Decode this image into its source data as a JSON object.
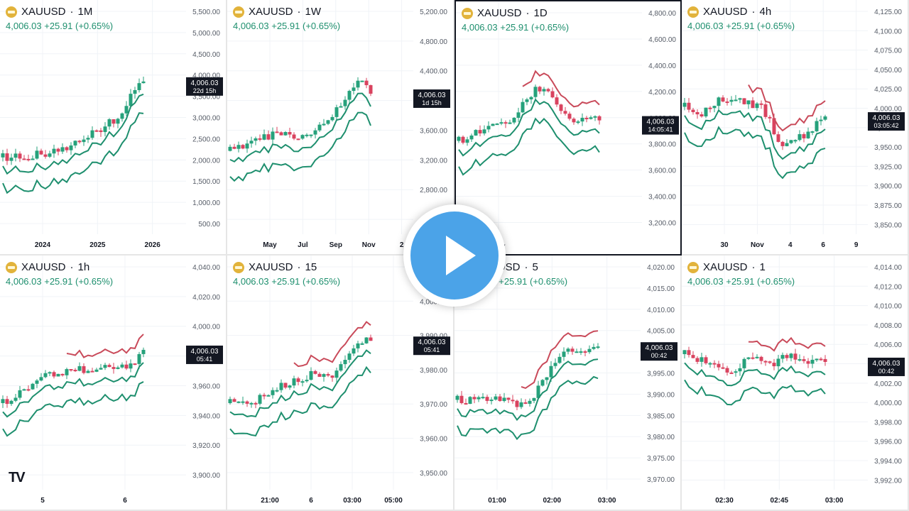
{
  "symbol": "XAUUSD",
  "quote": {
    "price": "4,006.03",
    "change": "+25.91",
    "pct": "(+0.65%)"
  },
  "colors": {
    "up": "#26a17b",
    "down": "#d9435f",
    "ema_fast": "#1e8f6e",
    "ema_slow": "#c94a5a",
    "text": "#131722",
    "axis": "#555b66"
  },
  "panels": [
    {
      "timeframe": "1M",
      "y_ticks": [
        "5,500.00",
        "5,000.00",
        "4,500.00",
        "4,000.00",
        "3,500.00",
        "3,000.00",
        "2,500.00",
        "2,000.00",
        "1,500.00",
        "1,000.00",
        "500.00"
      ],
      "x_ticks": [
        "2024",
        "2025",
        "2026"
      ],
      "tag_price": "4,006.03",
      "tag_time": "22d 15h"
    },
    {
      "timeframe": "1W",
      "y_ticks": [
        "5,200.00",
        "4,800.00",
        "4,400.00",
        "4,000.00",
        "3,600.00",
        "3,200.00",
        "2,800.00",
        "2,400.00"
      ],
      "x_ticks": [
        "May",
        "Jul",
        "Sep",
        "Nov",
        "2"
      ],
      "tag_price": "4,006.03",
      "tag_time": "1d 15h"
    },
    {
      "timeframe": "1D",
      "y_ticks": [
        "4,800.00",
        "4,600.00",
        "4,400.00",
        "4,200.00",
        "4,000.00",
        "3,800.00",
        "3,600.00",
        "3,400.00",
        "3,200.00"
      ],
      "x_ticks": [
        "Nov"
      ],
      "tag_price": "4,006.03",
      "tag_time": "14:05:41"
    },
    {
      "timeframe": "4h",
      "y_ticks": [
        "4,125.00",
        "4,100.00",
        "4,075.00",
        "4,050.00",
        "4,025.00",
        "4,000.00",
        "3,975.00",
        "3,950.00",
        "3,925.00",
        "3,900.00",
        "3,875.00",
        "3,850.00"
      ],
      "x_ticks": [
        "30",
        "Nov",
        "4",
        "6",
        "9"
      ],
      "tag_price": "4,006.03",
      "tag_time": "03:05:42"
    },
    {
      "timeframe": "1h",
      "y_ticks": [
        "4,040.00",
        "4,020.00",
        "4,000.00",
        "3,980.00",
        "3,960.00",
        "3,940.00",
        "3,920.00",
        "3,900.00"
      ],
      "x_ticks": [
        "5",
        "6"
      ],
      "tag_price": "4,006.03",
      "tag_time": "05:41"
    },
    {
      "timeframe": "15",
      "y_ticks": [
        "4,010.00",
        "4,000.00",
        "3,990.00",
        "3,980.00",
        "3,970.00",
        "3,960.00",
        "3,950.00"
      ],
      "x_ticks": [
        "21:00",
        "6",
        "03:00",
        "05:00"
      ],
      "tag_price": "4,006.03",
      "tag_time": "05:41"
    },
    {
      "timeframe": "5",
      "y_ticks": [
        "4,020.00",
        "4,015.00",
        "4,010.00",
        "4,005.00",
        "4,000.00",
        "3,995.00",
        "3,990.00",
        "3,985.00",
        "3,980.00",
        "3,975.00",
        "3,970.00"
      ],
      "x_ticks": [
        "01:00",
        "02:00",
        "03:00"
      ],
      "tag_price": "4,006.03",
      "tag_time": "00:42"
    },
    {
      "timeframe": "1",
      "y_ticks": [
        "4,014.00",
        "4,012.00",
        "4,010.00",
        "4,008.00",
        "4,006.00",
        "4,004.00",
        "4,002.00",
        "4,000.00",
        "3,998.00",
        "3,996.00",
        "3,994.00",
        "3,992.00"
      ],
      "x_ticks": [
        "02:30",
        "02:45",
        "03:00"
      ],
      "tag_price": "4,006.03",
      "tag_time": "00:42"
    }
  ],
  "logo_text": "TV"
}
